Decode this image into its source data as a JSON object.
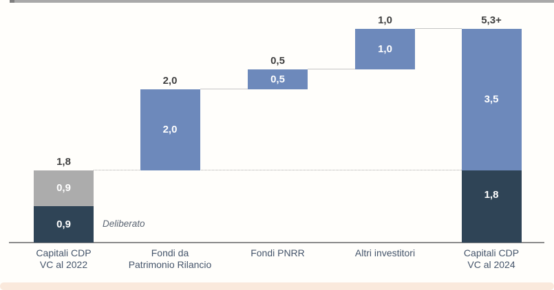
{
  "colors": {
    "blue": "#6d89bb",
    "gray": "#acacac",
    "dark": "#2f4456",
    "axis": "#8a8a8a",
    "connector_solid": "#c4c4c4",
    "connector_dotted": "#a8a8a8",
    "value_label": "#3f3f3f",
    "category_label": "#44546a",
    "annotation": "#5a6472",
    "top_strip": "#a9a9a9",
    "top_strip_cap": "#7f7f7f",
    "bottom_strip": "#fae9dc"
  },
  "chart_data": {
    "type": "bar",
    "subtype": "waterfall",
    "title": "",
    "xlabel": "",
    "ylabel": "",
    "ylim": [
      0,
      5.5
    ],
    "grid": false,
    "legend": false,
    "decimal_style": "comma",
    "categories": [
      "Capitali CDP VC al 2022",
      "Fondi da Patrimonio Rilancio",
      "Fondi PNRR",
      "Altri investitori",
      "Capitali CDP VC al 2024"
    ],
    "annotation": "Deliberato",
    "bars": [
      {
        "category_lines": [
          "Capitali CDP",
          "VC al 2022"
        ],
        "total_label": "1,8",
        "total": 1.8,
        "base": 0,
        "segments": [
          {
            "value": 0.9,
            "label": "0,9",
            "color": "dark"
          },
          {
            "value": 0.9,
            "label": "0,9",
            "color": "gray"
          }
        ]
      },
      {
        "category_lines": [
          "Fondi da",
          "Patrimonio Rilancio"
        ],
        "total_label": "2,0",
        "total": 2.0,
        "base": 1.8,
        "segments": [
          {
            "value": 2.0,
            "label": "2,0",
            "color": "blue"
          }
        ]
      },
      {
        "category_lines": [
          "Fondi PNRR"
        ],
        "total_label": "0,5",
        "total": 0.5,
        "base": 3.8,
        "segments": [
          {
            "value": 0.5,
            "label": "0,5",
            "color": "blue"
          }
        ]
      },
      {
        "category_lines": [
          "Altri investitori"
        ],
        "total_label": "1,0",
        "total": 1.0,
        "base": 4.3,
        "segments": [
          {
            "value": 1.0,
            "label": "1,0",
            "color": "blue"
          }
        ]
      },
      {
        "category_lines": [
          "Capitali CDP",
          "VC al 2024"
        ],
        "total_label": "5,3+",
        "total": 5.3,
        "base": 0,
        "segments": [
          {
            "value": 1.8,
            "label": "1,8",
            "color": "dark",
            "label_dy": -17
          },
          {
            "value": 3.5,
            "label": "3,5",
            "color": "blue"
          }
        ]
      }
    ],
    "connectors": [
      {
        "level": 1.8,
        "from": 0,
        "to": 4,
        "style": "dotted"
      },
      {
        "level": 3.8,
        "from": 1,
        "to": 2,
        "style": "solid"
      },
      {
        "level": 4.3,
        "from": 2,
        "to": 3,
        "style": "solid"
      },
      {
        "level": 5.3,
        "from": 3,
        "to": 4,
        "style": "solid"
      }
    ]
  }
}
